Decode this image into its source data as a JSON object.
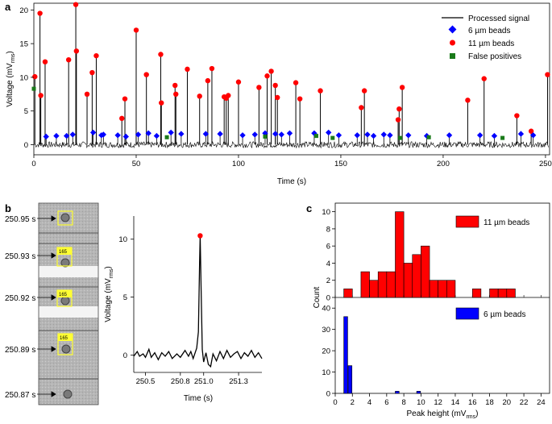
{
  "chart_data": [
    {
      "panel": "a",
      "type": "line",
      "xlabel": "Time (s)",
      "ylabel": "Voltage (mV",
      "ylabel_sub": "rms",
      "xlim": [
        0,
        252
      ],
      "ylim": [
        -1.5,
        21
      ],
      "xticks": [
        0,
        50,
        100,
        150,
        200,
        250
      ],
      "yticks": [
        0,
        5,
        10,
        15,
        20
      ],
      "legend_position": "top-right",
      "legend": {
        "signal": "Processed signal",
        "small": "6 µm beads",
        "large": "11 µm beads",
        "false_pos": "False positives"
      },
      "large_peaks": [
        [
          0.5,
          10.1
        ],
        [
          3,
          19.5
        ],
        [
          3.4,
          7.3
        ],
        [
          5.5,
          12.3
        ],
        [
          17,
          12.6
        ],
        [
          20.5,
          20.8
        ],
        [
          20.8,
          13.9
        ],
        [
          26,
          7.5
        ],
        [
          28.5,
          10.7
        ],
        [
          30.5,
          13.2
        ],
        [
          43,
          3.9
        ],
        [
          44.5,
          6.8
        ],
        [
          50,
          17.0
        ],
        [
          55,
          10.4
        ],
        [
          62,
          13.4
        ],
        [
          62.3,
          6.2
        ],
        [
          69,
          8.8
        ],
        [
          69.4,
          7.5
        ],
        [
          75,
          11.2
        ],
        [
          81,
          7.2
        ],
        [
          85,
          9.5
        ],
        [
          87,
          11.3
        ],
        [
          93,
          7.1
        ],
        [
          94,
          6.9
        ],
        [
          95,
          7.3
        ],
        [
          100,
          9.3
        ],
        [
          110,
          8.5
        ],
        [
          114,
          10.2
        ],
        [
          116,
          10.9
        ],
        [
          118,
          8.8
        ],
        [
          119,
          7.0
        ],
        [
          128,
          9.2
        ],
        [
          130,
          6.8
        ],
        [
          140,
          8.0
        ],
        [
          160,
          5.5
        ],
        [
          161.5,
          8.0
        ],
        [
          178,
          3.7
        ],
        [
          178.5,
          5.3
        ],
        [
          180,
          8.5
        ],
        [
          212,
          6.6
        ],
        [
          220,
          9.8
        ],
        [
          236,
          4.3
        ],
        [
          243,
          2.0
        ],
        [
          251,
          10.4
        ]
      ],
      "small_peaks": [
        [
          6,
          1.2
        ],
        [
          11,
          1.3
        ],
        [
          16,
          1.3
        ],
        [
          19,
          1.5
        ],
        [
          29,
          1.8
        ],
        [
          33,
          1.4
        ],
        [
          34,
          1.5
        ],
        [
          41,
          1.4
        ],
        [
          45,
          1.2
        ],
        [
          51,
          1.5
        ],
        [
          56,
          1.7
        ],
        [
          60,
          1.3
        ],
        [
          67,
          1.8
        ],
        [
          72,
          1.6
        ],
        [
          84,
          1.6
        ],
        [
          91,
          1.6
        ],
        [
          102,
          1.4
        ],
        [
          108,
          1.5
        ],
        [
          113,
          1.7
        ],
        [
          118,
          1.6
        ],
        [
          121,
          1.5
        ],
        [
          125,
          1.7
        ],
        [
          137,
          1.7
        ],
        [
          144,
          1.8
        ],
        [
          149,
          1.4
        ],
        [
          158,
          1.4
        ],
        [
          163,
          1.5
        ],
        [
          166,
          1.3
        ],
        [
          171,
          1.5
        ],
        [
          174,
          1.4
        ],
        [
          183,
          1.4
        ],
        [
          192,
          1.3
        ],
        [
          203,
          1.4
        ],
        [
          218,
          1.4
        ],
        [
          225,
          1.3
        ],
        [
          238,
          1.6
        ],
        [
          244,
          1.4
        ]
      ],
      "false_positives": [
        [
          0,
          8.3
        ],
        [
          65,
          1.1
        ],
        [
          113,
          1.2
        ],
        [
          138,
          1.3
        ],
        [
          146,
          1.0
        ],
        [
          179,
          1.0
        ],
        [
          193,
          1.1
        ],
        [
          229,
          1.0
        ]
      ]
    },
    {
      "panel": "b",
      "type": "line",
      "xlabel": "Time (s)",
      "ylabel": "Voltage (mV",
      "ylabel_sub": "rms",
      "xlim": [
        250.4,
        251.5
      ],
      "ylim": [
        -1.5,
        12
      ],
      "xticks": [
        "250.5",
        "250.8",
        "251.0",
        "251.3"
      ],
      "xtick_values": [
        250.5,
        250.8,
        251.0,
        251.3
      ],
      "yticks": [
        0,
        5,
        10
      ],
      "trace": [
        [
          250.4,
          -0.1
        ],
        [
          250.43,
          0.3
        ],
        [
          250.45,
          -0.1
        ],
        [
          250.48,
          0.1
        ],
        [
          250.5,
          -0.2
        ],
        [
          250.53,
          0.5
        ],
        [
          250.55,
          -0.2
        ],
        [
          250.58,
          0.2
        ],
        [
          250.61,
          -0.4
        ],
        [
          250.64,
          0.2
        ],
        [
          250.67,
          -0.1
        ],
        [
          250.7,
          0.3
        ],
        [
          250.73,
          -0.3
        ],
        [
          250.77,
          0.1
        ],
        [
          250.8,
          -0.2
        ],
        [
          250.84,
          0.4
        ],
        [
          250.87,
          -0.1
        ],
        [
          250.89,
          0.3
        ],
        [
          250.91,
          -0.3
        ],
        [
          250.94,
          0.6
        ],
        [
          250.955,
          2.0
        ],
        [
          250.965,
          8.0
        ],
        [
          250.97,
          10.3
        ],
        [
          250.978,
          6.0
        ],
        [
          250.988,
          0.5
        ],
        [
          251.0,
          -0.6
        ],
        [
          251.02,
          0.2
        ],
        [
          251.04,
          -0.8
        ],
        [
          251.06,
          -1.0
        ],
        [
          251.08,
          0.1
        ],
        [
          251.11,
          -0.5
        ],
        [
          251.14,
          0.3
        ],
        [
          251.17,
          -0.3
        ],
        [
          251.2,
          0.4
        ],
        [
          251.23,
          -0.2
        ],
        [
          251.26,
          0.1
        ],
        [
          251.29,
          0.3
        ],
        [
          251.32,
          -0.3
        ],
        [
          251.35,
          0.2
        ],
        [
          251.38,
          -0.1
        ],
        [
          251.41,
          0.4
        ],
        [
          251.44,
          -0.2
        ],
        [
          251.47,
          0.2
        ],
        [
          251.5,
          -0.3
        ]
      ],
      "peak": [
        250.97,
        10.3
      ],
      "micrograph_labels": [
        "250.95 s",
        "250.93 s",
        "250.92 s",
        "250.89 s",
        "250.87 s"
      ],
      "micrograph_badge": "165"
    },
    {
      "panel": "c",
      "type": "bar",
      "xlabel": "Peak height (mV",
      "xlabel_sub": "rms",
      "ylabel": "Count",
      "xlim": [
        0,
        25
      ],
      "xticks": [
        0,
        2,
        4,
        6,
        8,
        10,
        12,
        14,
        16,
        18,
        20,
        22,
        24
      ],
      "bin_width": 1,
      "series": [
        {
          "name": "11 µm beads",
          "color": "#ff0000",
          "ylim": [
            0,
            11
          ],
          "yticks": [
            0,
            2,
            4,
            6,
            8,
            10
          ],
          "bins": [
            [
              1,
              1
            ],
            [
              3,
              3
            ],
            [
              4,
              2
            ],
            [
              5,
              3
            ],
            [
              6,
              3
            ],
            [
              7,
              10
            ],
            [
              8,
              4
            ],
            [
              9,
              5
            ],
            [
              10,
              6
            ],
            [
              11,
              2
            ],
            [
              12,
              2
            ],
            [
              13,
              2
            ],
            [
              16,
              1
            ],
            [
              18,
              1
            ],
            [
              19,
              1
            ],
            [
              20,
              1
            ]
          ]
        },
        {
          "name": "6 µm beads",
          "color": "#0000ff",
          "ylim": [
            0,
            45
          ],
          "yticks": [
            0,
            10,
            20,
            30,
            40
          ],
          "bins": [
            [
              1,
              36
            ],
            [
              1.5,
              13
            ],
            [
              7,
              1
            ],
            [
              9.5,
              1
            ]
          ],
          "bar_width": 0.45
        }
      ]
    }
  ],
  "colors": {
    "signal": "#000000",
    "large": "#ff0000",
    "small": "#0000ff",
    "false_pos": "#1a7a1a",
    "badge": "#ffff33"
  }
}
